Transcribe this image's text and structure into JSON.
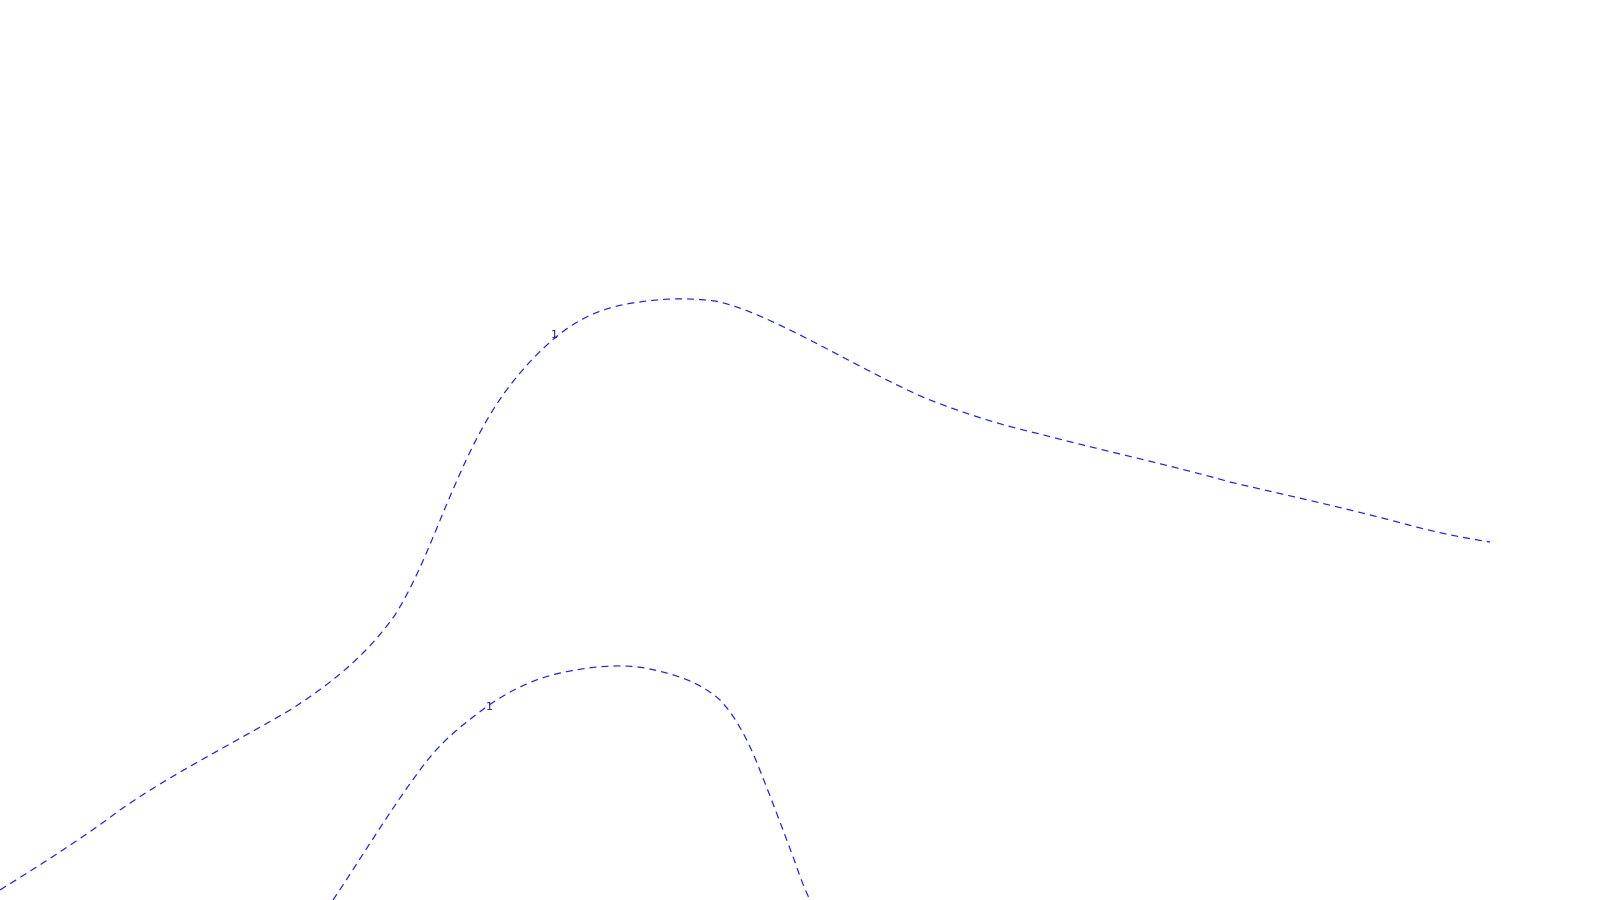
{
  "map": {
    "background_color": "#ffffff",
    "line_color": "#1a1aff",
    "label_color": "#1a1a8a",
    "line_style": "dashed"
  },
  "contours": [
    {
      "label": "1"
    },
    {
      "label": "1"
    }
  ]
}
